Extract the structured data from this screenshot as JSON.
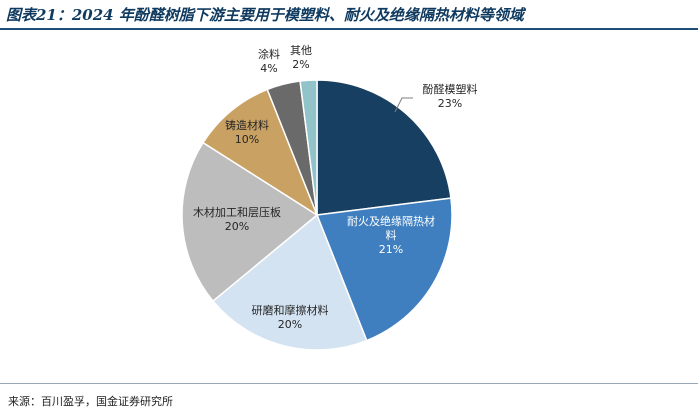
{
  "title": "图表21：2024 年酚醛树脂下游主要用于模塑料、耐火及绝缘隔热材料等领域",
  "source": "来源：百川盈孚，国金证券研究所",
  "chart_data": {
    "type": "pie",
    "title": "",
    "series": [
      {
        "name": "酚醛模塑料",
        "value": 23,
        "value_label": "23%",
        "color": "#173f61"
      },
      {
        "name": "耐火及绝缘隔热材料",
        "value": 21,
        "value_label": "21%",
        "color": "#3f7fc0"
      },
      {
        "name": "研磨和摩擦材料",
        "value": 20,
        "value_label": "20%",
        "color": "#d3e3f2"
      },
      {
        "name": "木材加工和层压板",
        "value": 20,
        "value_label": "20%",
        "color": "#bdbdbd"
      },
      {
        "name": "铸造材料",
        "value": 10,
        "value_label": "10%",
        "color": "#c9a263"
      },
      {
        "name": "涂料",
        "value": 4,
        "value_label": "4%",
        "color": "#6a6a6a"
      },
      {
        "name": "其他",
        "value": 2,
        "value_label": "2%",
        "color": "#92c3c8"
      }
    ]
  }
}
